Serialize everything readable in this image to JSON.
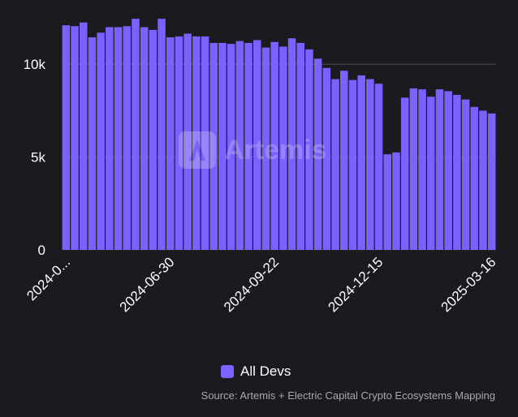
{
  "chart_data": {
    "type": "bar",
    "title": "",
    "xlabel": "",
    "ylabel": "",
    "ylim": [
      0,
      12500
    ],
    "y_ticks": [
      0,
      5000,
      10000
    ],
    "y_tick_labels": [
      "0",
      "5k",
      "10k"
    ],
    "x_tick_labels": [
      "2024-0...",
      "2024-06-30",
      "2024-09-22",
      "2024-12-15",
      "2025-03-16"
    ],
    "categories": [
      "2024-04-07",
      "2024-04-14",
      "2024-04-21",
      "2024-04-28",
      "2024-05-05",
      "2024-05-12",
      "2024-05-19",
      "2024-05-26",
      "2024-06-02",
      "2024-06-09",
      "2024-06-16",
      "2024-06-23",
      "2024-06-30",
      "2024-07-07",
      "2024-07-14",
      "2024-07-21",
      "2024-07-28",
      "2024-08-04",
      "2024-08-11",
      "2024-08-18",
      "2024-08-25",
      "2024-09-01",
      "2024-09-08",
      "2024-09-15",
      "2024-09-22",
      "2024-09-29",
      "2024-10-06",
      "2024-10-13",
      "2024-10-20",
      "2024-10-27",
      "2024-11-03",
      "2024-11-10",
      "2024-11-17",
      "2024-11-24",
      "2024-12-01",
      "2024-12-08",
      "2024-12-15",
      "2024-12-22",
      "2024-12-29",
      "2025-01-05",
      "2025-01-12",
      "2025-01-19",
      "2025-01-26",
      "2025-02-02",
      "2025-02-09",
      "2025-02-16",
      "2025-02-23",
      "2025-03-02",
      "2025-03-09",
      "2025-03-16"
    ],
    "series": [
      {
        "name": "All Devs",
        "color": "#7b61ff",
        "values": [
          12100,
          12050,
          12250,
          11450,
          11700,
          12000,
          12000,
          12050,
          12450,
          12000,
          11850,
          12450,
          11450,
          11500,
          11650,
          11500,
          11500,
          11150,
          11150,
          11100,
          11250,
          11150,
          11300,
          10900,
          11200,
          10950,
          11400,
          11150,
          10800,
          10300,
          9800,
          9200,
          9650,
          9150,
          9400,
          9200,
          8950,
          5150,
          5250,
          8200,
          8700,
          8650,
          8250,
          8650,
          8550,
          8350,
          8100,
          7700,
          7500,
          7350
        ]
      }
    ],
    "legend_position": "bottom-center",
    "grid": "horizontal"
  },
  "legend": {
    "label": "All Devs",
    "color": "#7b61ff"
  },
  "source": "Source: Artemis + Electric Capital Crypto Ecosystems Mapping",
  "watermark": "Artemis"
}
